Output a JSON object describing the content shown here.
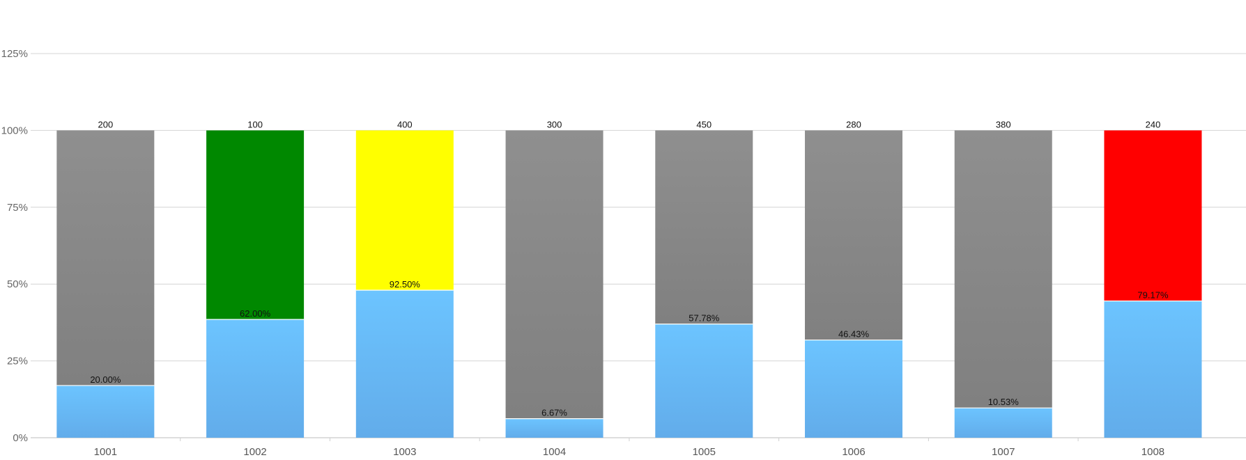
{
  "chart_data": {
    "type": "bar",
    "stacked": "percent",
    "categories": [
      "1001",
      "1002",
      "1003",
      "1004",
      "1005",
      "1006",
      "1007",
      "1008"
    ],
    "totals": [
      200,
      100,
      400,
      300,
      450,
      280,
      380,
      240
    ],
    "percent_labels": [
      "20.00%",
      "62.00%",
      "92.50%",
      "6.67%",
      "57.78%",
      "46.43%",
      "10.53%",
      "79.17%"
    ],
    "series": [
      {
        "values": [
          17,
          38.5,
          48,
          6.2,
          37,
          31.8,
          9.7,
          44.5
        ],
        "color": "#67bcf7"
      },
      {
        "values": [
          83,
          61.5,
          52,
          93.8,
          63,
          68.2,
          90.3,
          55.5
        ],
        "colors": [
          "#8a8a8a",
          "#008800",
          "#ffff00",
          "#8a8a8a",
          "#8a8a8a",
          "#8a8a8a",
          "#8a8a8a",
          "#ff0000"
        ]
      }
    ],
    "y_ticks": [
      "0%",
      "25%",
      "50%",
      "75%",
      "100%",
      "125%"
    ],
    "ylim": [
      0,
      125
    ],
    "grid": true
  }
}
